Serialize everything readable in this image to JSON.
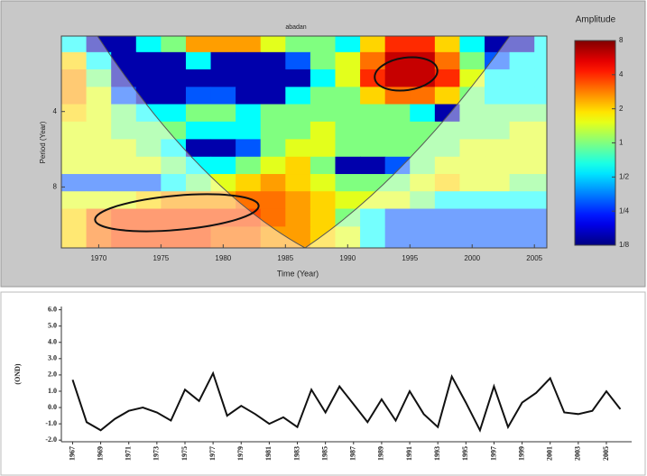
{
  "chart_data": [
    {
      "type": "heatmap",
      "title": "abadan",
      "xlabel": "Time (Year)",
      "ylabel": "Period (Year)",
      "x": [
        1968,
        1970,
        1972,
        1974,
        1976,
        1978,
        1980,
        1982,
        1984,
        1986,
        1988,
        1990,
        1992,
        1994,
        1996,
        1998,
        2000,
        2002,
        2004,
        2006
      ],
      "y": [
        2.15,
        2.5,
        2.95,
        3.45,
        4.05,
        4.75,
        5.6,
        6.55,
        7.7,
        9.0,
        10.6,
        12.5
      ],
      "values": [
        [
          0.6,
          0.15,
          0.15,
          0.6,
          1,
          2.5,
          2.5,
          2.5,
          1.5,
          1,
          1,
          0.6,
          2,
          4,
          4,
          2,
          0.6,
          0.15,
          0.15,
          0.6
        ],
        [
          2,
          0.6,
          0.15,
          0.15,
          0.15,
          0.6,
          0.15,
          0.15,
          0.15,
          0.3,
          1,
          1.5,
          3,
          6,
          6,
          3,
          1,
          0.3,
          0.6,
          0.6
        ],
        [
          2.5,
          1,
          0.15,
          0.15,
          0.15,
          0.15,
          0.15,
          0.15,
          0.15,
          0.15,
          0.6,
          1.5,
          4,
          6,
          6,
          4,
          1.5,
          0.6,
          0.6,
          0.6
        ],
        [
          2.5,
          1.5,
          0.3,
          0.15,
          0.15,
          0.3,
          0.3,
          0.15,
          0.15,
          0.6,
          1,
          1,
          2,
          3,
          3,
          2,
          1,
          0.6,
          0.6,
          0.6
        ],
        [
          2,
          1.5,
          1,
          0.6,
          0.6,
          1,
          1,
          0.6,
          1,
          1,
          1,
          1,
          1,
          1,
          0.6,
          0.15,
          1,
          1,
          1,
          1
        ],
        [
          1.5,
          1.5,
          1,
          1,
          1,
          0.6,
          0.6,
          0.6,
          1,
          1,
          1.5,
          1,
          1,
          1,
          1,
          1,
          1,
          1,
          1.5,
          1.5
        ],
        [
          1.5,
          1.5,
          1.5,
          1,
          0.6,
          0.15,
          0.15,
          0.3,
          1,
          1.5,
          1.5,
          1,
          1,
          1,
          1,
          1,
          1.5,
          1.5,
          1.5,
          1.5
        ],
        [
          1.5,
          1.5,
          1.5,
          1.5,
          1,
          0.6,
          0.6,
          1,
          1.5,
          2,
          1,
          0.15,
          0.15,
          0.3,
          1,
          1.5,
          1.5,
          1.5,
          1.5,
          1.5
        ],
        [
          0.3,
          0.3,
          0.3,
          0.3,
          0.6,
          1,
          1.5,
          2,
          2.5,
          2,
          1.5,
          1,
          1,
          1,
          1.5,
          2,
          1.5,
          1.5,
          1,
          1
        ],
        [
          1.5,
          1.5,
          1.5,
          2,
          2.5,
          2.5,
          2.5,
          3,
          3,
          2.5,
          2,
          1.5,
          1.5,
          1.5,
          1,
          0.6,
          0.6,
          0.6,
          0.6,
          0.6
        ],
        [
          2,
          3,
          3.5,
          3.5,
          3.5,
          3.5,
          3.5,
          3.5,
          3,
          2.5,
          2,
          1,
          0.6,
          0.3,
          0.3,
          0.3,
          0.3,
          0.3,
          0.3,
          0.3
        ],
        [
          2,
          3,
          3.5,
          3.5,
          3.5,
          3.5,
          3,
          3,
          2.5,
          2.5,
          2,
          1.5,
          0.6,
          0.3,
          0.3,
          0.3,
          0.3,
          0.3,
          0.3,
          0.3
        ]
      ],
      "xlim": [
        1967,
        2006
      ],
      "xticks": [
        1970,
        1975,
        1980,
        1985,
        1990,
        1995,
        2000,
        2005
      ],
      "ylim": [
        2,
        14
      ],
      "yticks": [
        4,
        8
      ],
      "ylog": true,
      "colorbar": {
        "title": "Amplitude",
        "clim": [
          0.125,
          8
        ],
        "log": true,
        "colormap": "jet",
        "ticks": [
          8,
          4,
          2,
          1,
          {
            "value": 0.5,
            "label": "1/2"
          },
          {
            "value": 0.25,
            "label": "1/4"
          },
          {
            "value": 0.125,
            "label": "1/8"
          }
        ]
      }
    },
    {
      "type": "line",
      "ylabel": "(OND)",
      "color": "#111111",
      "x": [
        1967,
        1968,
        1969,
        1970,
        1971,
        1972,
        1973,
        1974,
        1975,
        1976,
        1977,
        1978,
        1979,
        1980,
        1981,
        1982,
        1983,
        1984,
        1985,
        1986,
        1987,
        1988,
        1989,
        1990,
        1991,
        1992,
        1993,
        1994,
        1995,
        1996,
        1997,
        1998,
        1999,
        2000,
        2001,
        2002,
        2003,
        2004,
        2005,
        2006
      ],
      "values": [
        1.7,
        -0.9,
        -1.4,
        -0.7,
        -0.2,
        0.0,
        -0.3,
        -0.8,
        1.1,
        0.4,
        2.1,
        -0.5,
        0.1,
        -0.4,
        -1.0,
        -0.6,
        -1.2,
        1.1,
        -0.3,
        1.3,
        0.2,
        -0.9,
        0.5,
        -0.8,
        1.0,
        -0.4,
        -1.2,
        1.9,
        0.3,
        -1.4,
        1.3,
        -1.2,
        0.3,
        0.9,
        1.8,
        -0.3,
        -0.4,
        -0.2,
        1.0,
        -0.1
      ],
      "xlim": [
        1966.2,
        2006.8
      ],
      "xticks": [
        1967,
        1969,
        1971,
        1973,
        1975,
        1977,
        1979,
        1981,
        1983,
        1985,
        1987,
        1989,
        1991,
        1993,
        1995,
        1997,
        1999,
        2001,
        2003,
        2005
      ],
      "ylim": [
        -2.1,
        6.2
      ],
      "yticks": [
        {
          "value": -2,
          "label": "-2.0"
        },
        {
          "value": -1,
          "label": "-1.0"
        },
        {
          "value": 0,
          "label": "0.0"
        },
        {
          "value": 1,
          "label": "1.0"
        },
        {
          "value": 2,
          "label": "2.0"
        },
        {
          "value": 3,
          "label": "3.0"
        },
        {
          "value": 4,
          "label": "4.0"
        },
        {
          "value": 5,
          "label": "5.0"
        },
        {
          "value": 6,
          "label": "6.0"
        }
      ]
    }
  ]
}
